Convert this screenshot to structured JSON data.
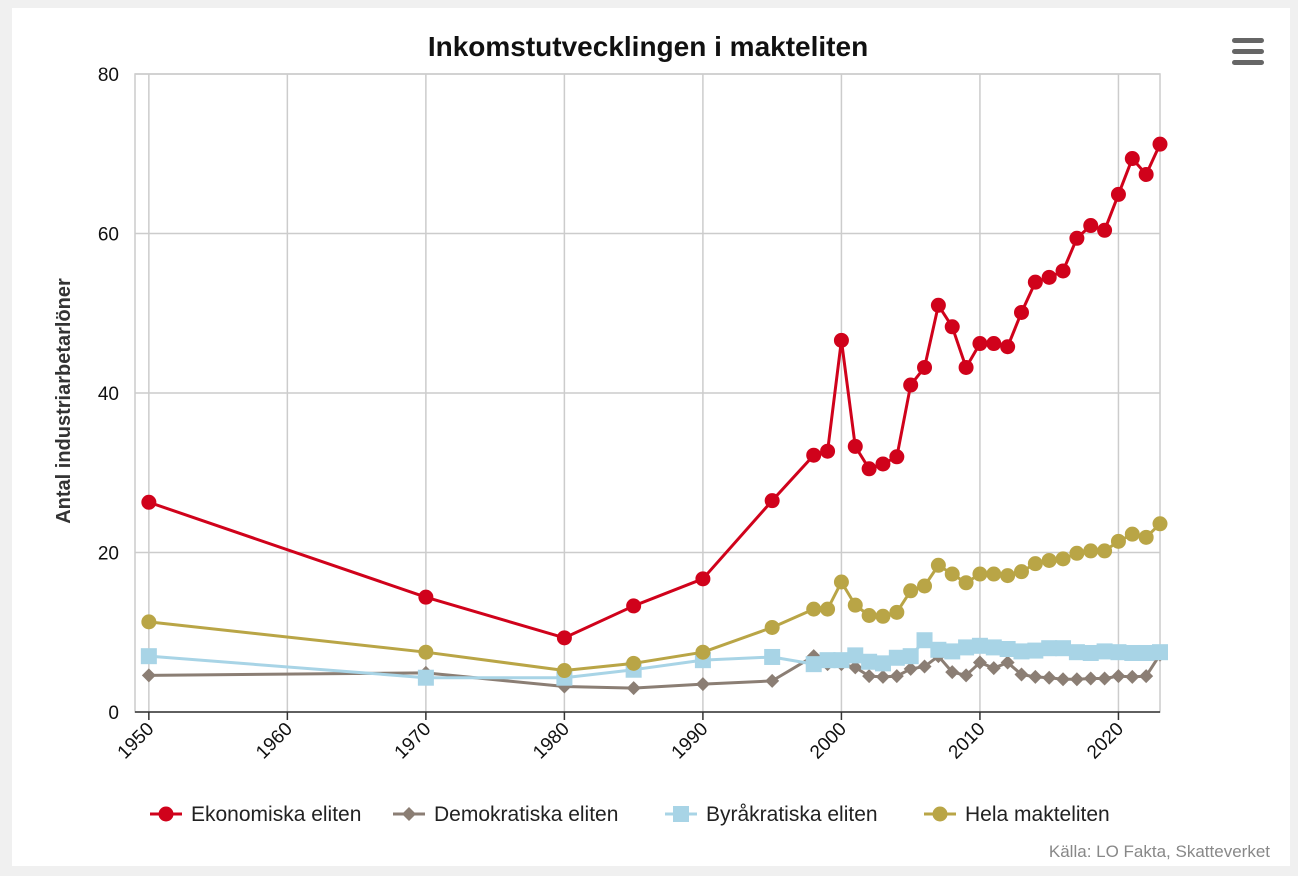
{
  "chart_data": {
    "type": "line",
    "title": "Inkomstutvecklingen i makteliten",
    "ylabel": "Antal industriarbetarlöner",
    "xlabel": "",
    "xlim": [
      1949,
      2023
    ],
    "ylim": [
      0,
      80
    ],
    "x_ticks": [
      "1950",
      "1960",
      "1970",
      "1980",
      "1990",
      "2000",
      "2010",
      "2020"
    ],
    "y_ticks": [
      "0",
      "20",
      "40",
      "60",
      "80"
    ],
    "grid": true,
    "legend_position": "bottom",
    "source": "Källa: LO Fakta, Skatteverket",
    "series": [
      {
        "name": "Ekonomiska eliten",
        "color": "#d0021b",
        "marker": "circle",
        "x": [
          1950,
          1970,
          1980,
          1985,
          1990,
          1995,
          1998,
          1999,
          2000,
          2001,
          2002,
          2003,
          2004,
          2005,
          2006,
          2007,
          2008,
          2009,
          2010,
          2011,
          2012,
          2013,
          2014,
          2015,
          2016,
          2017,
          2018,
          2019,
          2020,
          2021,
          2022,
          2023
        ],
        "y": [
          26.3,
          14.4,
          9.3,
          13.3,
          16.7,
          26.5,
          32.2,
          32.7,
          46.6,
          33.3,
          30.5,
          31.1,
          32.0,
          41.0,
          43.2,
          51.0,
          48.3,
          43.2,
          46.2,
          46.2,
          45.8,
          50.1,
          53.9,
          54.5,
          55.3,
          59.4,
          61.0,
          60.4,
          64.9,
          69.4,
          67.4,
          71.2
        ]
      },
      {
        "name": "Demokratiska eliten",
        "color": "#8b7e74",
        "marker": "diamond",
        "x": [
          1950,
          1970,
          1980,
          1985,
          1990,
          1995,
          1998,
          1999,
          2000,
          2001,
          2002,
          2003,
          2004,
          2005,
          2006,
          2007,
          2008,
          2009,
          2010,
          2011,
          2012,
          2013,
          2014,
          2015,
          2016,
          2017,
          2018,
          2019,
          2020,
          2021,
          2022,
          2023
        ],
        "y": [
          4.6,
          4.9,
          3.2,
          3.0,
          3.5,
          3.9,
          7.0,
          6.0,
          6.0,
          5.6,
          4.5,
          4.4,
          4.5,
          5.4,
          5.7,
          7.0,
          5.0,
          4.6,
          6.2,
          5.5,
          6.2,
          4.7,
          4.4,
          4.3,
          4.1,
          4.1,
          4.2,
          4.2,
          4.5,
          4.4,
          4.5,
          7.2
        ]
      },
      {
        "name": "Byråkratiska eliten",
        "color": "#a8d4e6",
        "marker": "square",
        "x": [
          1950,
          1970,
          1980,
          1985,
          1990,
          1995,
          1998,
          1999,
          2000,
          2001,
          2002,
          2003,
          2004,
          2005,
          2006,
          2007,
          2008,
          2009,
          2010,
          2011,
          2012,
          2013,
          2014,
          2015,
          2016,
          2017,
          2018,
          2019,
          2020,
          2021,
          2022,
          2023
        ],
        "y": [
          7.0,
          4.3,
          4.3,
          5.3,
          6.5,
          6.9,
          6.0,
          6.5,
          6.5,
          7.1,
          6.3,
          6.1,
          6.8,
          7.0,
          9.0,
          7.8,
          7.6,
          8.1,
          8.3,
          8.1,
          7.9,
          7.6,
          7.7,
          8.0,
          8.0,
          7.5,
          7.4,
          7.6,
          7.5,
          7.4,
          7.4,
          7.5
        ]
      },
      {
        "name": "Hela makteliten",
        "color": "#b9a546",
        "marker": "circle",
        "x": [
          1950,
          1970,
          1980,
          1985,
          1990,
          1995,
          1998,
          1999,
          2000,
          2001,
          2002,
          2003,
          2004,
          2005,
          2006,
          2007,
          2008,
          2009,
          2010,
          2011,
          2012,
          2013,
          2014,
          2015,
          2016,
          2017,
          2018,
          2019,
          2020,
          2021,
          2022,
          2023
        ],
        "y": [
          11.3,
          7.5,
          5.2,
          6.1,
          7.5,
          10.6,
          12.9,
          12.9,
          16.3,
          13.4,
          12.1,
          12.0,
          12.5,
          15.2,
          15.8,
          18.4,
          17.3,
          16.2,
          17.3,
          17.3,
          17.1,
          17.6,
          18.6,
          19.0,
          19.2,
          19.9,
          20.2,
          20.2,
          21.4,
          22.3,
          21.9,
          23.6
        ]
      }
    ]
  },
  "toolbar": {
    "menu_icon": "hamburger-menu-icon"
  }
}
